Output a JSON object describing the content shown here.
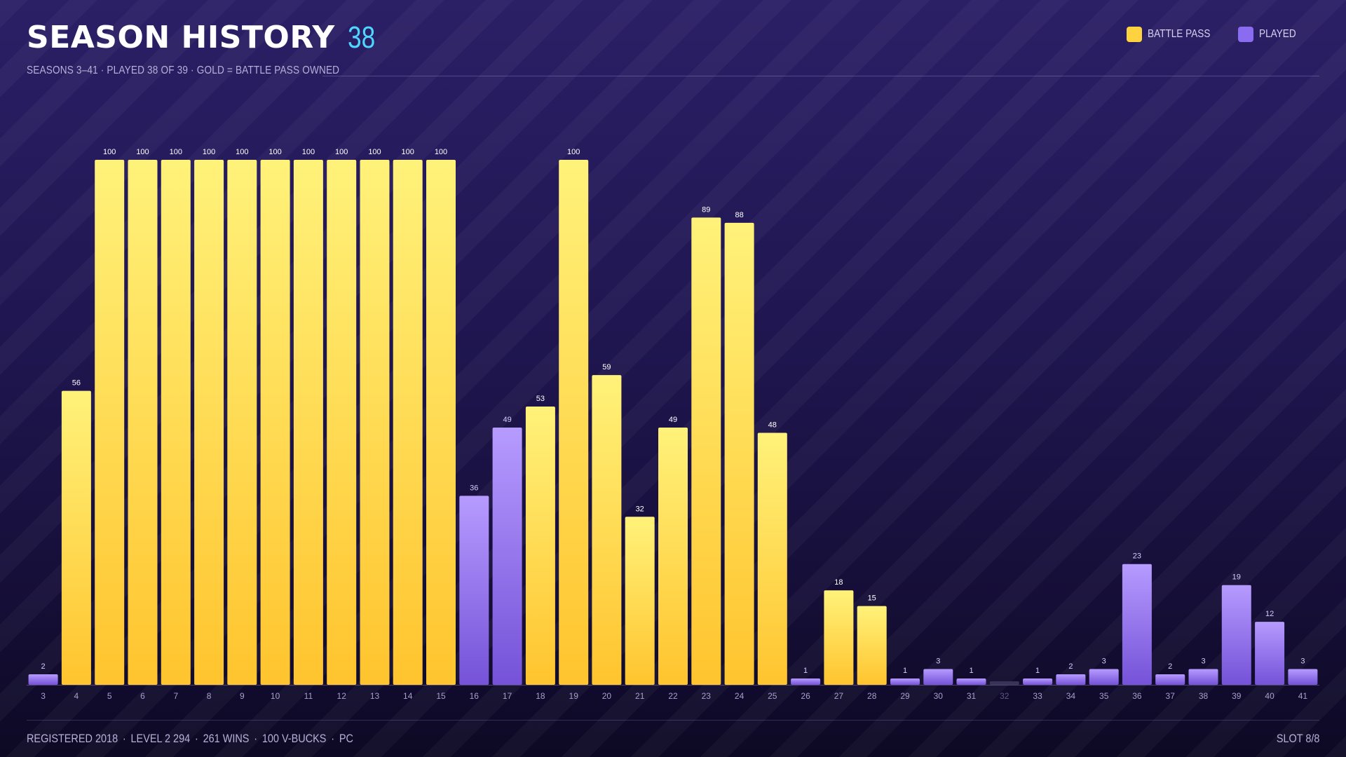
{
  "header": {
    "title": "SEASON HISTORY",
    "count": "38",
    "subtitle": "SEASONS 3–41 · PLAYED 38 OF 39 · GOLD = BATTLE PASS OWNED"
  },
  "legend": {
    "items": [
      {
        "label": "BATTLE PASS",
        "color": "#ffd23f"
      },
      {
        "label": "PLAYED",
        "color": "#8a6cf0"
      }
    ]
  },
  "footer": {
    "left": [
      "REGISTERED 2018",
      "LEVEL 2 294",
      "261 WINS",
      "100 V-BUCKS",
      "PC"
    ],
    "right": "SLOT 8/8"
  },
  "colors": {
    "battle_pass_top": "#fff27a",
    "battle_pass_bottom": "#ffc42e",
    "played_top": "#b69bff",
    "played_bottom": "#7552d8",
    "not_played": "#3a3358",
    "count_accent": "#4fd6ff"
  },
  "chart_data": {
    "type": "bar",
    "title": "",
    "xlabel": "",
    "ylabel": "",
    "ylim": [
      0,
      100
    ],
    "grid": false,
    "legend_position": "top-right",
    "categories": [
      "3",
      "4",
      "5",
      "6",
      "7",
      "8",
      "9",
      "10",
      "11",
      "12",
      "13",
      "14",
      "15",
      "16",
      "17",
      "18",
      "19",
      "20",
      "21",
      "22",
      "23",
      "24",
      "25",
      "26",
      "27",
      "28",
      "29",
      "30",
      "31",
      "32",
      "33",
      "34",
      "35",
      "36",
      "37",
      "38",
      "39",
      "40",
      "41"
    ],
    "values": [
      2,
      56,
      100,
      100,
      100,
      100,
      100,
      100,
      100,
      100,
      100,
      100,
      100,
      36,
      49,
      53,
      100,
      59,
      32,
      49,
      89,
      88,
      48,
      1,
      18,
      15,
      1,
      3,
      1,
      0,
      1,
      2,
      3,
      23,
      2,
      3,
      19,
      12,
      3
    ],
    "labels": [
      "2",
      "56",
      "100",
      "100",
      "100",
      "100",
      "100",
      "100",
      "100",
      "100",
      "100",
      "100",
      "100",
      "36",
      "49",
      "53",
      "100",
      "59",
      "32",
      "49",
      "89",
      "88",
      "48",
      "1",
      "18",
      "15",
      "1",
      "3",
      "1",
      "",
      "1",
      "2",
      "3",
      "23",
      "2",
      "3",
      "19",
      "12",
      "3"
    ],
    "battle_pass": [
      false,
      true,
      true,
      true,
      true,
      true,
      true,
      true,
      true,
      true,
      true,
      true,
      true,
      false,
      false,
      true,
      true,
      true,
      true,
      true,
      true,
      true,
      true,
      false,
      true,
      true,
      false,
      false,
      false,
      false,
      false,
      false,
      false,
      false,
      false,
      false,
      false,
      false,
      false
    ],
    "played": [
      true,
      true,
      true,
      true,
      true,
      true,
      true,
      true,
      true,
      true,
      true,
      true,
      true,
      true,
      true,
      true,
      true,
      true,
      true,
      true,
      true,
      true,
      true,
      true,
      true,
      true,
      true,
      true,
      true,
      false,
      true,
      true,
      true,
      true,
      true,
      true,
      true,
      true,
      true
    ]
  }
}
